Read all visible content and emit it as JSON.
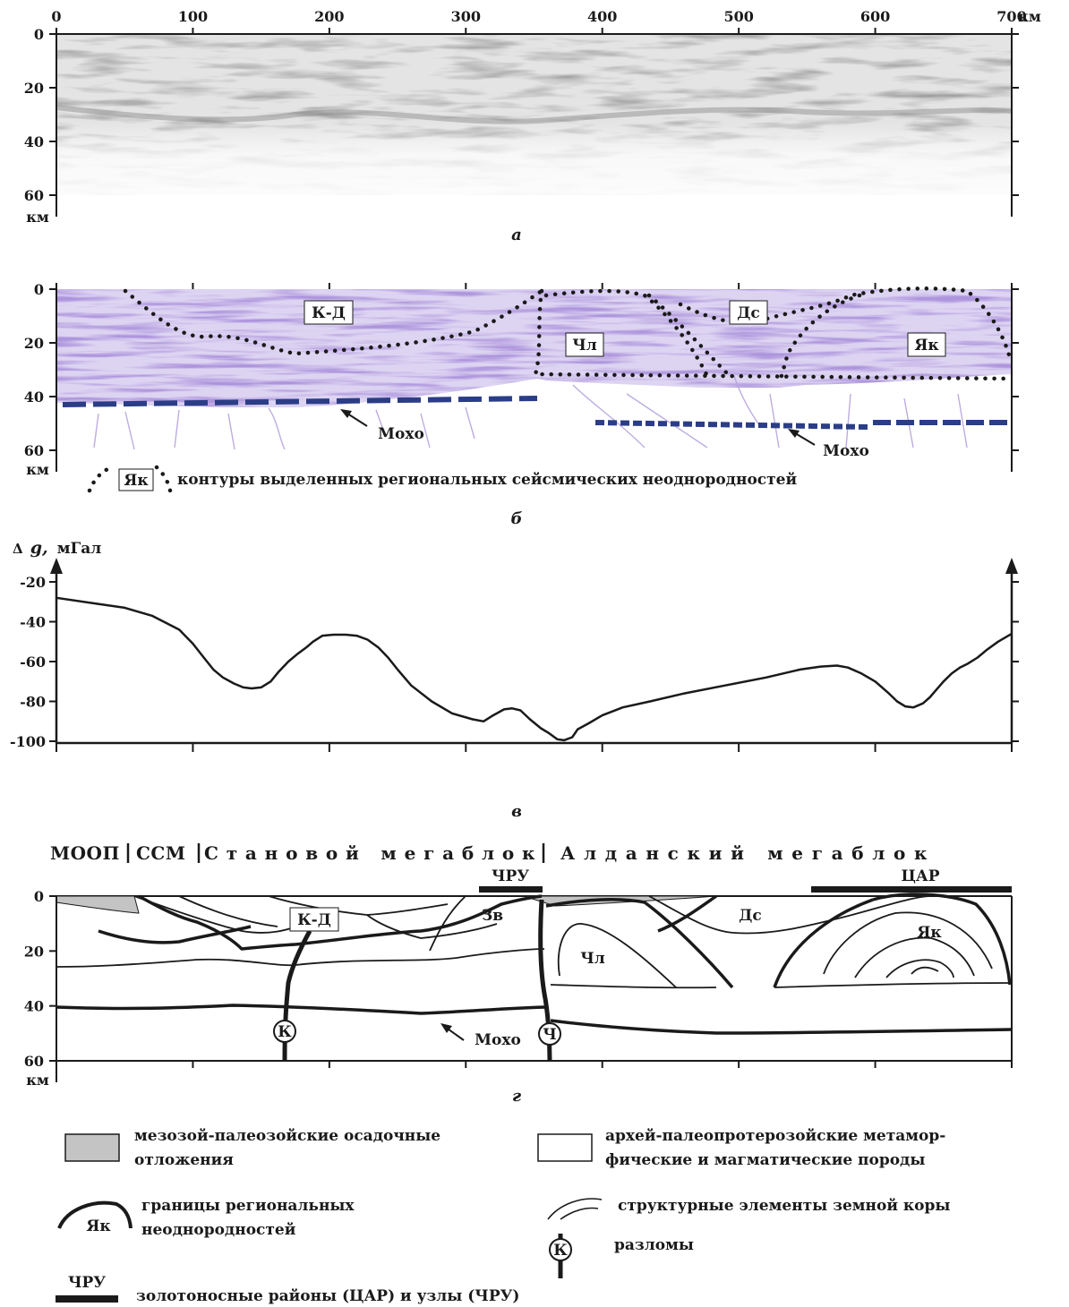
{
  "panel_letters": {
    "a": "а",
    "b": "б",
    "v": "в",
    "g": "г"
  },
  "axes": {
    "distance_ticks": [
      "0",
      "100",
      "200",
      "300",
      "400",
      "500",
      "600",
      "700"
    ],
    "distance_unit": "км",
    "depth_ticks": [
      "0",
      "20",
      "40",
      "60"
    ],
    "depth_unit": "км"
  },
  "panel_b": {
    "labels": {
      "kd": "К-Д",
      "dc": "Дс",
      "chl": "Чл",
      "yak": "Як"
    },
    "moho_left": "Мохо",
    "moho_right": "Мохо",
    "legend_box": "Як",
    "legend_text": "контуры выделенных региональных сейсмических неоднородностей"
  },
  "panel_v": {
    "ylabel_symbol": "Δ",
    "ylabel_var": "g,",
    "ylabel_unit": "мГал",
    "yticks": [
      "-20",
      "-40",
      "-60",
      "-80",
      "-100"
    ]
  },
  "chart_data": {
    "type": "line",
    "xlabel": "",
    "ylabel": "Δg, мГал",
    "xlim": [
      0,
      700
    ],
    "ylim": [
      -100,
      -20
    ],
    "series": [
      {
        "x": [
          0,
          30,
          50,
          70,
          90,
          100,
          108,
          115,
          122,
          130,
          137,
          143,
          150,
          157,
          163,
          170,
          177,
          183,
          188,
          195,
          203,
          212,
          220,
          228,
          236,
          243,
          250,
          260,
          275,
          290,
          305,
          313,
          320,
          328,
          334,
          340,
          347,
          355,
          361,
          367,
          372,
          378,
          382,
          390,
          400,
          415,
          435,
          460,
          490,
          520,
          545,
          560,
          572,
          580,
          590,
          600,
          610,
          616,
          622,
          628,
          635,
          640,
          645,
          650,
          656,
          662,
          668,
          675,
          682,
          690,
          700
        ],
        "y": [
          -28,
          -31,
          -33,
          -37,
          -44,
          -51,
          -58,
          -64,
          -68,
          -71,
          -73,
          -73.5,
          -73,
          -70,
          -65,
          -60,
          -56,
          -53,
          -50,
          -47,
          -46.5,
          -46.5,
          -47,
          -49,
          -53,
          -58,
          -64,
          -72,
          -80,
          -86,
          -89,
          -90,
          -87,
          -84,
          -83.5,
          -84.5,
          -89,
          -93.5,
          -96,
          -99,
          -99.5,
          -98,
          -94,
          -91,
          -87,
          -83,
          -80,
          -76,
          -72,
          -68,
          -64,
          -62.5,
          -62,
          -63,
          -66,
          -70,
          -76,
          -80,
          -82.5,
          -83,
          -81,
          -78,
          -74,
          -70,
          -66,
          -63,
          -61,
          -58,
          -54,
          -50,
          -46
        ]
      }
    ]
  },
  "panel_g": {
    "header": {
      "moop": "МООП",
      "ssm": "ССМ",
      "stanovoy": "Становой мегаблок",
      "aldan": "Алданский мегаблок"
    },
    "bars": {
      "chru": "ЧРУ",
      "car": "ЦАР"
    },
    "labels": {
      "kd": "К-Д",
      "zv": "Зв",
      "chl": "Чл",
      "dc": "Дс",
      "yak": "Як"
    },
    "faults": {
      "k": "К",
      "ch": "Ч"
    },
    "moho": "Мохо"
  },
  "legend": {
    "sediments": [
      "мезозой-палеозойские осадочные",
      "отложения"
    ],
    "metamorphic": [
      "архей-палеопротерозойские метамор-",
      "фические и магматические породы"
    ],
    "boundaries_symbol": "Як",
    "boundaries": [
      "границы региональных",
      "неоднородностей"
    ],
    "structural": "структурные элементы земной коры",
    "faults_symbol": "К",
    "faults": "разломы",
    "gold_symbol": "ЧРУ",
    "gold": "золотоносные районы (ЦАР) и узлы (ЧРУ)"
  },
  "colors": {
    "ink": "#1a1a1a",
    "seismic_gray": "#9a9a9a",
    "seismic_purple": "#6e4fb0",
    "seismic_purple_light": "#b6a4de",
    "moho_blue": "#2b3d86",
    "sediment_gray": "#c4c4c4"
  }
}
